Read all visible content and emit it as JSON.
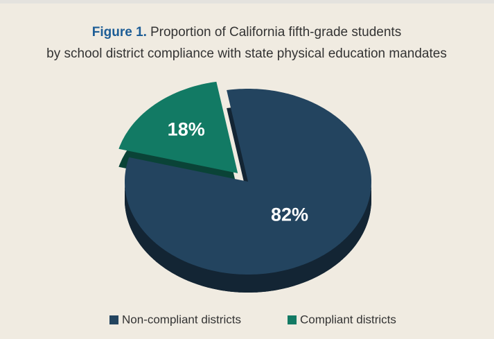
{
  "chart_data": {
    "type": "pie3d",
    "figure_label": "Figure 1.",
    "title": [
      "Proportion of California fifth-grade students",
      "by school district compliance with state physical education mandates"
    ],
    "categories": [
      "Non-compliant districts",
      "Compliant districts"
    ],
    "values": [
      82,
      18
    ],
    "value_labels": [
      "82%",
      "18%"
    ],
    "colors": [
      "#23445f",
      "#127a64"
    ]
  }
}
